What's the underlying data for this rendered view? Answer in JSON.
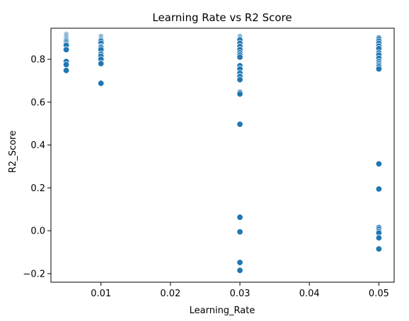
{
  "chart_data": {
    "type": "scatter",
    "title": "Learning Rate vs R2 Score",
    "xlabel": "Learning_Rate",
    "ylabel": "R2_Score",
    "xlim": [
      0.0028,
      0.0522
    ],
    "ylim": [
      -0.24,
      0.945
    ],
    "xticks": [
      0.01,
      0.02,
      0.03,
      0.04,
      0.05
    ],
    "xtick_labels": [
      "0.01",
      "0.02",
      "0.03",
      "0.04",
      "0.05"
    ],
    "yticks": [
      -0.2,
      0.0,
      0.2,
      0.4,
      0.6,
      0.8
    ],
    "ytick_labels": [
      "−0.2",
      "0.0",
      "0.2",
      "0.4",
      "0.6",
      "0.8"
    ],
    "grid": false,
    "marker_color": "#1f77b4",
    "marker_edge_color": "#ffffff",
    "points": [
      {
        "x": 0.005,
        "y": 0.915
      },
      {
        "x": 0.005,
        "y": 0.91
      },
      {
        "x": 0.005,
        "y": 0.905
      },
      {
        "x": 0.005,
        "y": 0.9
      },
      {
        "x": 0.005,
        "y": 0.895
      },
      {
        "x": 0.005,
        "y": 0.89
      },
      {
        "x": 0.005,
        "y": 0.885
      },
      {
        "x": 0.005,
        "y": 0.878
      },
      {
        "x": 0.005,
        "y": 0.87
      },
      {
        "x": 0.005,
        "y": 0.865
      },
      {
        "x": 0.005,
        "y": 0.845
      },
      {
        "x": 0.005,
        "y": 0.79
      },
      {
        "x": 0.005,
        "y": 0.775
      },
      {
        "x": 0.005,
        "y": 0.748
      },
      {
        "x": 0.01,
        "y": 0.905
      },
      {
        "x": 0.01,
        "y": 0.9
      },
      {
        "x": 0.01,
        "y": 0.895
      },
      {
        "x": 0.01,
        "y": 0.89
      },
      {
        "x": 0.01,
        "y": 0.885
      },
      {
        "x": 0.01,
        "y": 0.875
      },
      {
        "x": 0.01,
        "y": 0.86
      },
      {
        "x": 0.01,
        "y": 0.855
      },
      {
        "x": 0.01,
        "y": 0.845
      },
      {
        "x": 0.01,
        "y": 0.825
      },
      {
        "x": 0.01,
        "y": 0.815
      },
      {
        "x": 0.01,
        "y": 0.8
      },
      {
        "x": 0.01,
        "y": 0.78
      },
      {
        "x": 0.01,
        "y": 0.688
      },
      {
        "x": 0.03,
        "y": 0.905
      },
      {
        "x": 0.03,
        "y": 0.9
      },
      {
        "x": 0.03,
        "y": 0.895
      },
      {
        "x": 0.03,
        "y": 0.89
      },
      {
        "x": 0.03,
        "y": 0.875
      },
      {
        "x": 0.03,
        "y": 0.86
      },
      {
        "x": 0.03,
        "y": 0.845
      },
      {
        "x": 0.03,
        "y": 0.83
      },
      {
        "x": 0.03,
        "y": 0.82
      },
      {
        "x": 0.03,
        "y": 0.81
      },
      {
        "x": 0.03,
        "y": 0.77
      },
      {
        "x": 0.03,
        "y": 0.755
      },
      {
        "x": 0.03,
        "y": 0.735
      },
      {
        "x": 0.03,
        "y": 0.72
      },
      {
        "x": 0.03,
        "y": 0.705
      },
      {
        "x": 0.03,
        "y": 0.645
      },
      {
        "x": 0.03,
        "y": 0.638
      },
      {
        "x": 0.03,
        "y": 0.497
      },
      {
        "x": 0.03,
        "y": 0.063
      },
      {
        "x": 0.03,
        "y": -0.005
      },
      {
        "x": 0.03,
        "y": -0.148
      },
      {
        "x": 0.03,
        "y": -0.185
      },
      {
        "x": 0.05,
        "y": 0.9
      },
      {
        "x": 0.05,
        "y": 0.895
      },
      {
        "x": 0.05,
        "y": 0.885
      },
      {
        "x": 0.05,
        "y": 0.875
      },
      {
        "x": 0.05,
        "y": 0.862
      },
      {
        "x": 0.05,
        "y": 0.85
      },
      {
        "x": 0.05,
        "y": 0.83
      },
      {
        "x": 0.05,
        "y": 0.82
      },
      {
        "x": 0.05,
        "y": 0.805
      },
      {
        "x": 0.05,
        "y": 0.79
      },
      {
        "x": 0.05,
        "y": 0.78
      },
      {
        "x": 0.05,
        "y": 0.772
      },
      {
        "x": 0.05,
        "y": 0.765
      },
      {
        "x": 0.05,
        "y": 0.755
      },
      {
        "x": 0.05,
        "y": 0.312
      },
      {
        "x": 0.05,
        "y": 0.195
      },
      {
        "x": 0.05,
        "y": 0.015
      },
      {
        "x": 0.05,
        "y": 0.008
      },
      {
        "x": 0.05,
        "y": -0.002
      },
      {
        "x": 0.05,
        "y": -0.01
      },
      {
        "x": 0.05,
        "y": -0.033
      },
      {
        "x": 0.05,
        "y": -0.085
      }
    ]
  }
}
